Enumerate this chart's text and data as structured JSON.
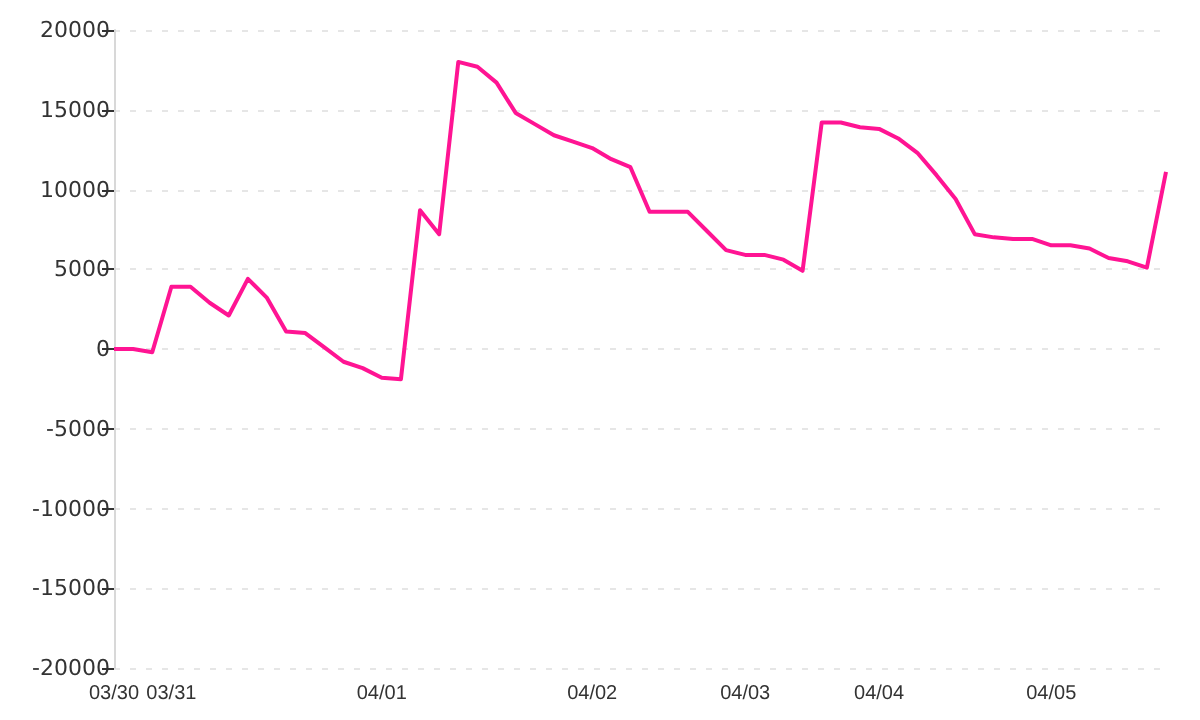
{
  "chart_data": {
    "type": "line",
    "categories": [
      "03/30",
      null,
      null,
      "03/31",
      null,
      null,
      null,
      null,
      null,
      null,
      null,
      null,
      null,
      null,
      "04/01",
      null,
      null,
      null,
      null,
      null,
      null,
      null,
      null,
      null,
      null,
      "04/02",
      null,
      null,
      null,
      null,
      null,
      null,
      null,
      "04/03",
      null,
      null,
      null,
      null,
      null,
      null,
      "04/04",
      null,
      null,
      null,
      null,
      null,
      null,
      null,
      null,
      "04/05",
      null,
      null,
      null,
      null,
      null,
      null
    ],
    "values": [
      0,
      0,
      -200,
      3900,
      3900,
      2900,
      2100,
      4400,
      3200,
      1100,
      1000,
      100,
      -800,
      -1200,
      -1800,
      -1900,
      8700,
      7200,
      18000,
      17700,
      16700,
      14800,
      14100,
      13400,
      13000,
      12600,
      11900,
      11400,
      8600,
      8600,
      8600,
      7400,
      6200,
      5900,
      5900,
      5600,
      4900,
      14200,
      14200,
      13900,
      13800,
      13200,
      12300,
      10900,
      9400,
      7200,
      7000,
      6900,
      6900,
      6500,
      6500,
      6300,
      5700,
      5500,
      5100,
      11100
    ],
    "color": "#ff1493",
    "ylim": [
      -20000,
      20000
    ],
    "yticks": [
      -20000,
      -15000,
      -10000,
      -5000,
      0,
      5000,
      10000,
      15000,
      20000
    ],
    "grid": "y",
    "marker": "none"
  }
}
